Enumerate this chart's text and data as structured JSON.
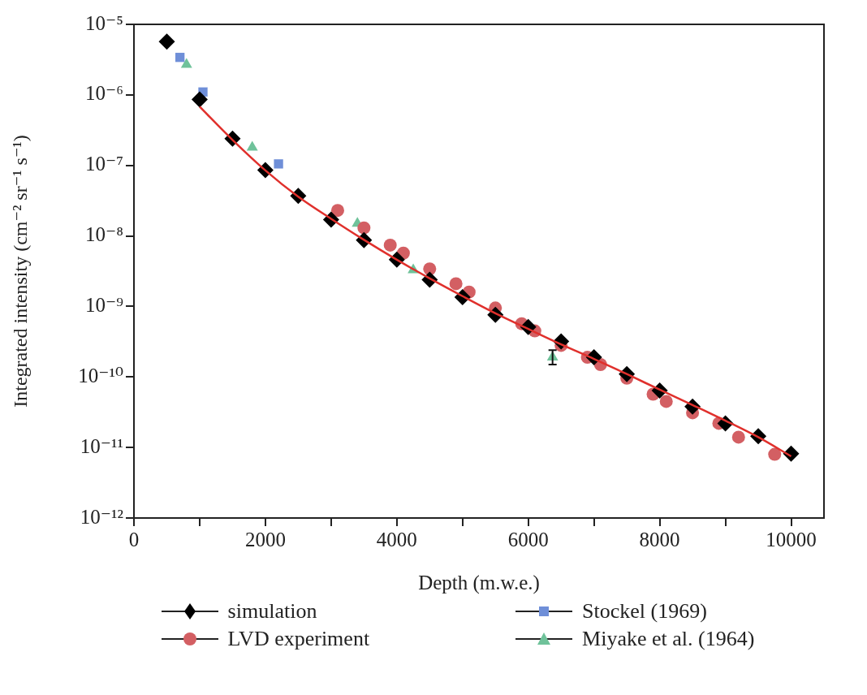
{
  "chart_data": {
    "type": "scatter",
    "xlabel": "Depth (m.w.e.)",
    "ylabel": "Integrated intensity (cm⁻² sr⁻¹ s⁻¹)",
    "log": "y",
    "grid": false,
    "legend": "bottom",
    "xlim": [
      0,
      10500
    ],
    "xticks": [
      0,
      {
        "value": 1000,
        "label": null
      },
      2000,
      {
        "value": 3000,
        "label": null
      },
      4000,
      {
        "value": 5000,
        "label": null
      },
      6000,
      {
        "value": 7000,
        "label": null
      },
      8000,
      {
        "value": 9000,
        "label": null
      },
      10000
    ],
    "ylim": [
      1e-12,
      1e-05
    ],
    "yticks": [
      {
        "value": 1e-12,
        "label": "10⁻¹²"
      },
      {
        "value": 1e-11,
        "label": "10⁻¹¹"
      },
      {
        "value": 1e-10,
        "label": "10⁻¹⁰"
      },
      {
        "value": 1e-09,
        "label": "10⁻⁹"
      },
      {
        "value": 1e-08,
        "label": "10⁻⁸"
      },
      {
        "value": 1e-07,
        "label": "10⁻⁷"
      },
      {
        "value": 1e-06,
        "label": "10⁻⁶"
      },
      {
        "value": 1e-05,
        "label": "10⁻⁵"
      }
    ],
    "series": [
      {
        "type": "line",
        "color": "#e0302c",
        "marker": "none",
        "line_style": "solid",
        "x": [
          1000,
          1500,
          2000,
          2500,
          3000,
          3500,
          4000,
          4500,
          5000,
          5500,
          6000,
          6500,
          7000,
          7500,
          8000,
          8500,
          9000,
          9500,
          10000
        ],
        "values": [
          6.8e-07,
          2.3e-07,
          8.5e-08,
          3.6e-08,
          1.75e-08,
          8.8e-09,
          4.6e-09,
          2.5e-09,
          1.4e-09,
          8e-10,
          4.8e-10,
          2.9e-10,
          1.8e-10,
          1.1e-10,
          6.6e-11,
          4e-11,
          2.4e-11,
          1.4e-11,
          7.5e-12
        ]
      },
      {
        "name": "simulation",
        "type": "scatter",
        "color": "#000000",
        "marker": "diamond",
        "x": [
          500,
          1000,
          1500,
          2000,
          2500,
          3000,
          3500,
          4000,
          4500,
          5000,
          5500,
          6000,
          6500,
          7000,
          7500,
          8000,
          8500,
          9000,
          9500,
          10000
        ],
        "values": [
          5.7e-06,
          8.6e-07,
          2.4e-07,
          8.6e-08,
          3.7e-08,
          1.7e-08,
          8.7e-09,
          4.6e-09,
          2.4e-09,
          1.35e-09,
          7.6e-10,
          5.1e-10,
          3.2e-10,
          1.9e-10,
          1.1e-10,
          6.4e-11,
          3.8e-11,
          2.2e-11,
          1.45e-11,
          8.2e-12
        ]
      },
      {
        "name": "LVD experiment",
        "type": "scatter",
        "color": "#d35f63",
        "marker": "circle",
        "x": [
          3100,
          3500,
          3900,
          4100,
          4500,
          4900,
          5100,
          5500,
          5900,
          6100,
          6500,
          6900,
          7100,
          7500,
          7900,
          8100,
          8500,
          8900,
          9200,
          9750
        ],
        "values": [
          2.3e-08,
          1.3e-08,
          7.4e-09,
          5.7e-09,
          3.4e-09,
          2.1e-09,
          1.6e-09,
          9.5e-10,
          5.7e-10,
          4.5e-10,
          2.8e-10,
          1.9e-10,
          1.5e-10,
          9.6e-11,
          5.7e-11,
          4.5e-11,
          3.1e-11,
          2.2e-11,
          1.4e-11,
          8e-12
        ]
      },
      {
        "name": "Stockel (1969)",
        "type": "scatter",
        "color": "#6f8fd8",
        "marker": "square",
        "x": [
          700,
          1050,
          2200
        ],
        "values": [
          3.4e-06,
          1.1e-06,
          1.05e-07
        ]
      },
      {
        "name": "Miyake et al. (1964)",
        "type": "scatter",
        "color": "#6fc29a",
        "marker": "triangle",
        "x": [
          800,
          1800,
          3400,
          4250,
          6370
        ],
        "values": [
          2.7e-06,
          1.8e-07,
          1.5e-08,
          3.3e-09,
          1.9e-10
        ],
        "errors": [
          null,
          null,
          null,
          null,
          [
            1.5e-10,
            2.4e-10
          ]
        ]
      }
    ]
  }
}
